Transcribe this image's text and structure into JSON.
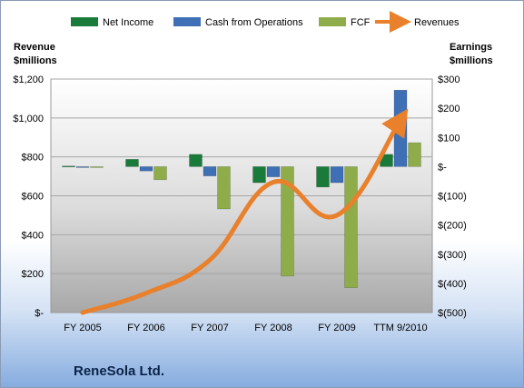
{
  "chart_data": {
    "type": "bar",
    "company": "ReneSola Ltd.",
    "categories": [
      "FY 2005",
      "FY 2006",
      "FY 2007",
      "FY 2008",
      "FY 2009",
      "TTM 9/2010"
    ],
    "left_axis": {
      "title_line1": "Revenue",
      "title_line2": "$millions",
      "ylim": [
        0,
        1200
      ],
      "ticks": [
        0,
        200,
        400,
        600,
        800,
        1000,
        1200
      ],
      "tick_labels": [
        "$-",
        "$200",
        "$400",
        "$600",
        "$800",
        "$1,000",
        "$1,200"
      ]
    },
    "right_axis": {
      "title_line1": "Earnings",
      "title_line2": "$millions",
      "ylim": [
        -500,
        300
      ],
      "ticks": [
        -500,
        -400,
        -300,
        -200,
        -100,
        0,
        100,
        200,
        300
      ],
      "tick_labels": [
        "$(500)",
        "$(400)",
        "$(300)",
        "$(200)",
        "$(100)",
        "$-",
        "$100",
        "$200",
        "$300"
      ]
    },
    "series": [
      {
        "name": "Net Income",
        "axis": "right",
        "color": "#1a7a3a",
        "values": [
          2,
          25,
          42,
          -55,
          -70,
          42
        ]
      },
      {
        "name": "Cash from Operations",
        "axis": "right",
        "color": "#3f6fb5",
        "values": [
          -2,
          -15,
          -32,
          -35,
          -55,
          262
        ]
      },
      {
        "name": "FCF",
        "axis": "right",
        "color": "#8fac4b",
        "values": [
          -3,
          -45,
          -145,
          -375,
          -415,
          82
        ]
      },
      {
        "name": "Revenues",
        "axis": "left",
        "type": "line",
        "color": "#e8802c",
        "values": [
          0,
          100,
          270,
          670,
          500,
          990
        ]
      }
    ],
    "grid": true,
    "legend_position": "top"
  }
}
